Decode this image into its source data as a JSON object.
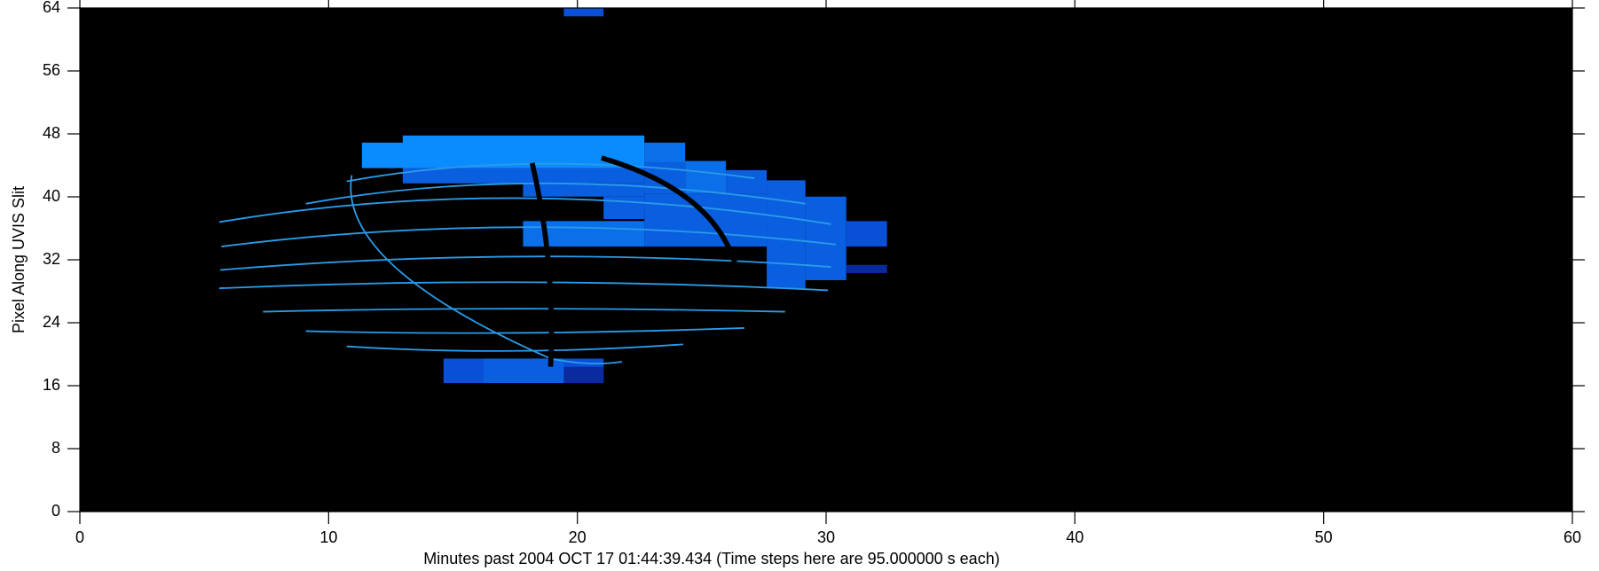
{
  "chart_data": {
    "type": "image",
    "xlabel": "Minutes past 2004 OCT 17 01:44:39.434 (Time steps here are 95.000000 s each)",
    "ylabel": "Pixel Along UVIS Slit",
    "xlim": [
      0,
      60
    ],
    "ylim": [
      0,
      64
    ],
    "xticks": [
      0,
      10,
      20,
      30,
      40,
      50,
      60
    ],
    "yticks": [
      0,
      8,
      16,
      24,
      32,
      40,
      48,
      56,
      64
    ]
  }
}
